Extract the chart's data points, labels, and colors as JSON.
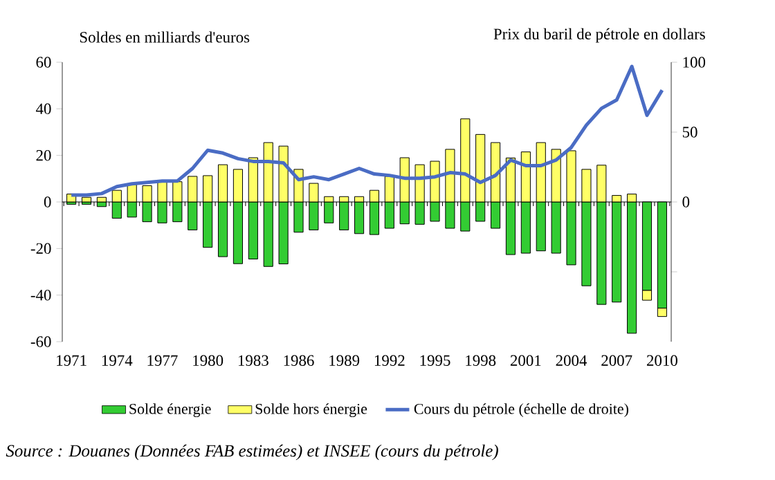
{
  "chart_data": {
    "type": "bar",
    "stacked": true,
    "ylabel": "Soldes en milliards d'euros",
    "y2label": "Prix du baril de pétrole en dollars",
    "categories": [
      "1971",
      null,
      null,
      "1974",
      null,
      null,
      "1977",
      null,
      null,
      "1980",
      null,
      null,
      "1983",
      null,
      null,
      "1986",
      null,
      null,
      "1989",
      null,
      null,
      "1992",
      null,
      null,
      "1995",
      null,
      null,
      "1998",
      null,
      null,
      "2001",
      null,
      null,
      "2004",
      null,
      null,
      "2007",
      null,
      null,
      "2010"
    ],
    "series": [
      {
        "name": "Solde énergie",
        "color": "#33cc33",
        "values": [
          -1,
          -1,
          -2,
          -7,
          -6.5,
          -8.5,
          -9,
          -8.5,
          -12,
          -19.5,
          -23.5,
          -26.5,
          -24.5,
          -27.7,
          -26.6,
          -13,
          -12,
          -9,
          -12,
          -13.6,
          -14,
          -11.3,
          -9.4,
          -9.6,
          -8.3,
          -11.3,
          -12.5,
          -8.3,
          -11.3,
          -22.6,
          -22,
          -21,
          -22,
          -27,
          -36,
          -44,
          -43,
          -56.4,
          -38,
          -45.6
        ]
      },
      {
        "name": "Solde hors énergie",
        "color": "#ffff66",
        "values": [
          3.4,
          2,
          2,
          5,
          7.5,
          7,
          8.5,
          8.7,
          11,
          11.3,
          16,
          14,
          19,
          25.5,
          24,
          14,
          8,
          2.3,
          2.3,
          2.3,
          5,
          11,
          19,
          16,
          17.5,
          22.6,
          35.7,
          29,
          25.5,
          18.9,
          21.5,
          25.5,
          22.6,
          22,
          14,
          15.8,
          2.8,
          3.4,
          -4.2,
          -3.6
        ]
      },
      {
        "name": "Cours du pétrole (échelle de droite)",
        "type": "line",
        "axis": "y2",
        "color": "#4a6cc4",
        "values": [
          5,
          5,
          6,
          11,
          13,
          14,
          15,
          15,
          24,
          37,
          35,
          31,
          29,
          29,
          28,
          16,
          18,
          16,
          20,
          24,
          20,
          19,
          17,
          17,
          18,
          21,
          20,
          14,
          19,
          30,
          26,
          26,
          30,
          39,
          55,
          67,
          73,
          97,
          62,
          80
        ]
      }
    ],
    "ylim": [
      -60,
      60
    ],
    "yticks": [
      -60,
      -40,
      -20,
      0,
      20,
      40,
      60
    ],
    "y2lim": [
      -100,
      100
    ],
    "y2ticks": [
      {
        "value": -50,
        "label": null
      },
      0,
      50,
      100
    ],
    "legend": "bottom",
    "annotations": [
      "Source : Douanes (Données FAB estimées) et INSEE (cours du pétrole)"
    ]
  }
}
